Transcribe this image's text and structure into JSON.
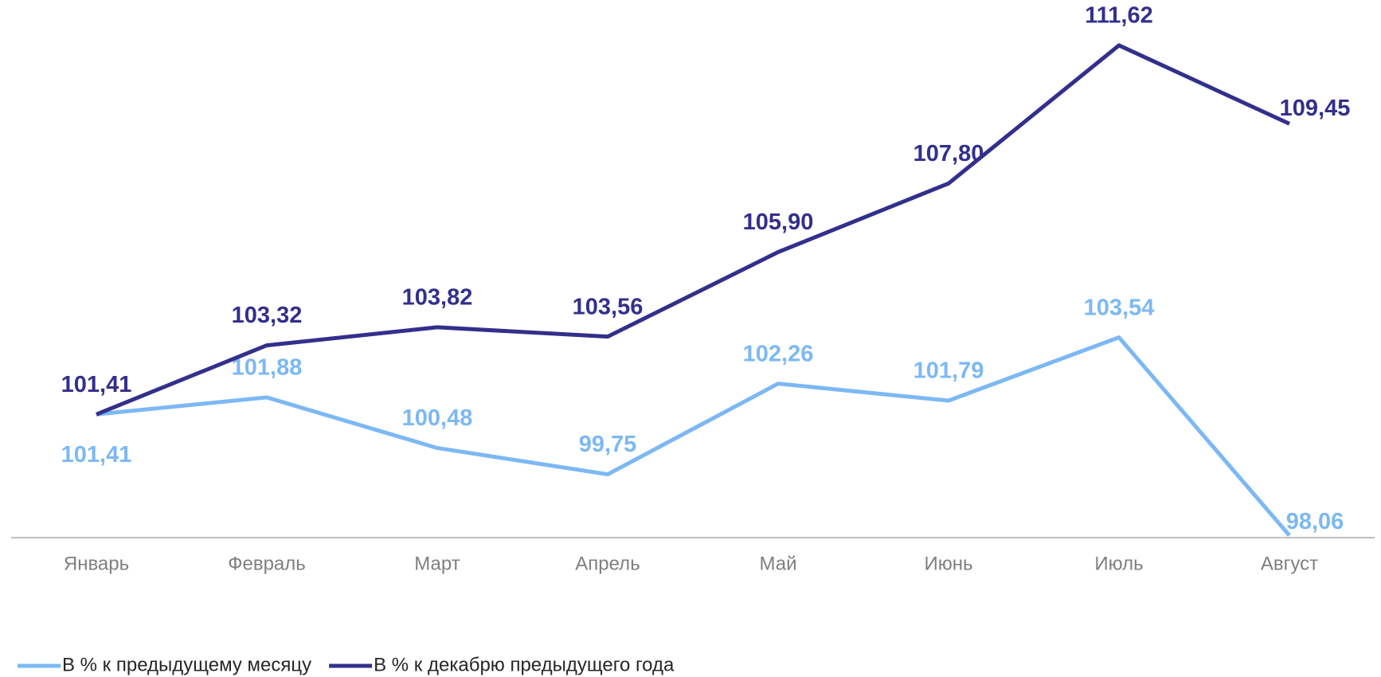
{
  "chart_data": {
    "type": "line",
    "categories": [
      "Январь",
      "Февраль",
      "Март",
      "Апрель",
      "Май",
      "Июнь",
      "Июль",
      "Август"
    ],
    "series": [
      {
        "name": "В % к предыдущему месяцу",
        "color": "#7cb8f4",
        "values": [
          101.41,
          101.88,
          100.48,
          99.75,
          102.26,
          101.79,
          103.54,
          98.06
        ],
        "value_labels": [
          "101,41",
          "101,88",
          "100,48",
          "99,75",
          "102,26",
          "101,79",
          "103,54",
          "98,06"
        ]
      },
      {
        "name": "В % к декабрю предыдущего года",
        "color": "#332f8c",
        "values": [
          101.41,
          103.32,
          103.82,
          103.56,
          105.9,
          107.8,
          111.62,
          109.45
        ],
        "value_labels": [
          "101,41",
          "103,32",
          "103,82",
          "103,56",
          "105,90",
          "107,80",
          "111,62",
          "109,45"
        ]
      }
    ],
    "ylim": [
      98,
      112.5
    ]
  }
}
